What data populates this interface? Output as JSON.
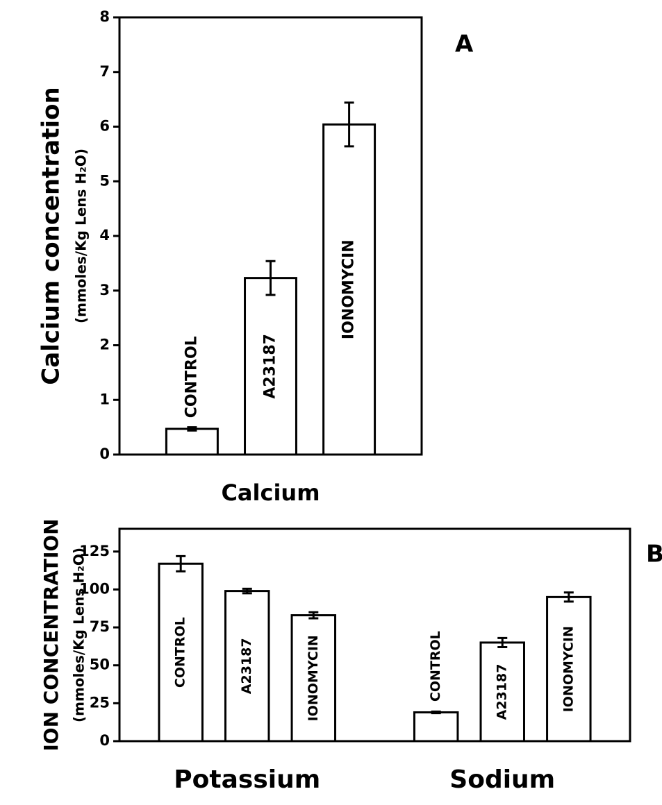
{
  "chart_data": [
    {
      "type": "bar",
      "panel_label": "A",
      "ylabel": "Calcium concentration",
      "ylabel_units": "(mmoles/Kg Lens H₂O)",
      "categories": [
        "Calcium"
      ],
      "color": "#ffffff",
      "series": [
        {
          "name": "CONTROL",
          "values": [
            0.47
          ],
          "errors": [
            0.03
          ]
        },
        {
          "name": "A23187",
          "values": [
            3.23
          ],
          "errors": [
            0.31
          ]
        },
        {
          "name": "IONOMYCIN",
          "values": [
            6.04
          ],
          "errors": [
            0.4
          ]
        }
      ],
      "ylim": [
        0,
        8
      ],
      "yticks": [
        0,
        1,
        2,
        3,
        4,
        5,
        6,
        7,
        8
      ]
    },
    {
      "type": "bar",
      "panel_label": "B",
      "ylabel": "ION CONCENTRATION",
      "ylabel_units": "(mmoles/Kg Lens H₂O)",
      "categories": [
        "Potassium",
        "Sodium"
      ],
      "color": "#ffffff",
      "series": [
        {
          "name": "CONTROL",
          "values": [
            117,
            19
          ],
          "errors": [
            5,
            0.5
          ]
        },
        {
          "name": "A23187",
          "values": [
            99,
            65
          ],
          "errors": [
            1.5,
            3
          ]
        },
        {
          "name": "IONOMYCIN",
          "values": [
            83,
            95
          ],
          "errors": [
            2,
            3
          ]
        }
      ],
      "ylim": [
        0,
        140
      ],
      "yticks": [
        0,
        25,
        50,
        75,
        100,
        125
      ]
    }
  ]
}
